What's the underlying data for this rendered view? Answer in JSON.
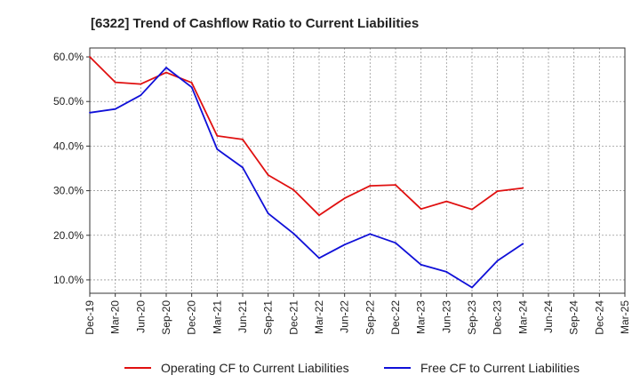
{
  "chart_data": {
    "type": "line",
    "title": "[6322]  Trend of Cashflow Ratio to Current Liabilities",
    "xlabel": "",
    "ylabel": "",
    "categories": [
      "Dec-19",
      "Mar-20",
      "Jun-20",
      "Sep-20",
      "Dec-20",
      "Mar-21",
      "Jun-21",
      "Sep-21",
      "Dec-21",
      "Mar-22",
      "Jun-22",
      "Sep-22",
      "Dec-22",
      "Mar-23",
      "Jun-23",
      "Sep-23",
      "Dec-23",
      "Mar-24",
      "Jun-24",
      "Sep-24",
      "Dec-24",
      "Mar-25"
    ],
    "y_tick_labels": [
      "10.0%",
      "20.0%",
      "30.0%",
      "40.0%",
      "50.0%",
      "60.0%"
    ],
    "y_ticks": [
      10,
      20,
      30,
      40,
      50,
      60
    ],
    "ylim": [
      7,
      62
    ],
    "grid": true,
    "legend_position": "bottom",
    "series": [
      {
        "name": "Operating CF to Current Liabilities",
        "color": "#e01010",
        "values": [
          60.0,
          54.3,
          53.9,
          56.5,
          54.2,
          42.3,
          41.5,
          33.5,
          30.2,
          24.5,
          28.3,
          31.1,
          31.3,
          25.9,
          27.6,
          25.8,
          29.9,
          30.6,
          null,
          null,
          null,
          null
        ]
      },
      {
        "name": "Free CF to Current Liabilities",
        "color": "#1010d8",
        "values": [
          47.5,
          48.3,
          51.4,
          57.6,
          53.2,
          39.3,
          35.2,
          24.9,
          20.4,
          14.9,
          17.9,
          20.3,
          18.3,
          13.4,
          11.8,
          8.3,
          14.3,
          18.1,
          null,
          null,
          null,
          null
        ]
      }
    ]
  }
}
